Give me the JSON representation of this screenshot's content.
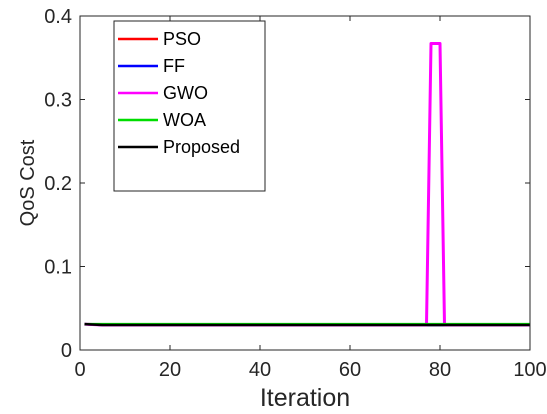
{
  "chart_data": {
    "type": "line",
    "xlabel": "Iteration",
    "ylabel": "QoS Cost",
    "xlim": [
      0,
      100
    ],
    "ylim": [
      0,
      0.4
    ],
    "xticks": [
      0,
      20,
      40,
      60,
      80,
      100
    ],
    "yticks": [
      0,
      0.1,
      0.2,
      0.3,
      0.4
    ],
    "xtick_labels": [
      "0",
      "20",
      "40",
      "60",
      "80",
      "100"
    ],
    "ytick_labels": [
      "0",
      "0.1",
      "0.2",
      "0.3",
      "0.4"
    ],
    "grid": false,
    "legend_position": "top-left",
    "series": [
      {
        "name": "PSO",
        "color": "#ff0000",
        "x": [
          1,
          5,
          100
        ],
        "y": [
          0.031,
          0.03,
          0.03
        ]
      },
      {
        "name": "FF",
        "color": "#0000ff",
        "x": [
          1,
          5,
          100
        ],
        "y": [
          0.031,
          0.03,
          0.03
        ]
      },
      {
        "name": "GWO",
        "color": "#ff00ff",
        "x": [
          1,
          5,
          77,
          78,
          80,
          81,
          100
        ],
        "y": [
          0.031,
          0.03,
          0.03,
          0.367,
          0.367,
          0.03,
          0.03
        ]
      },
      {
        "name": "WOA",
        "color": "#00dd00",
        "x": [
          1,
          5,
          100
        ],
        "y": [
          0.031,
          0.031,
          0.031
        ]
      },
      {
        "name": "Proposed",
        "color": "#000000",
        "x": [
          1,
          5,
          100
        ],
        "y": [
          0.031,
          0.03,
          0.03
        ]
      }
    ]
  }
}
